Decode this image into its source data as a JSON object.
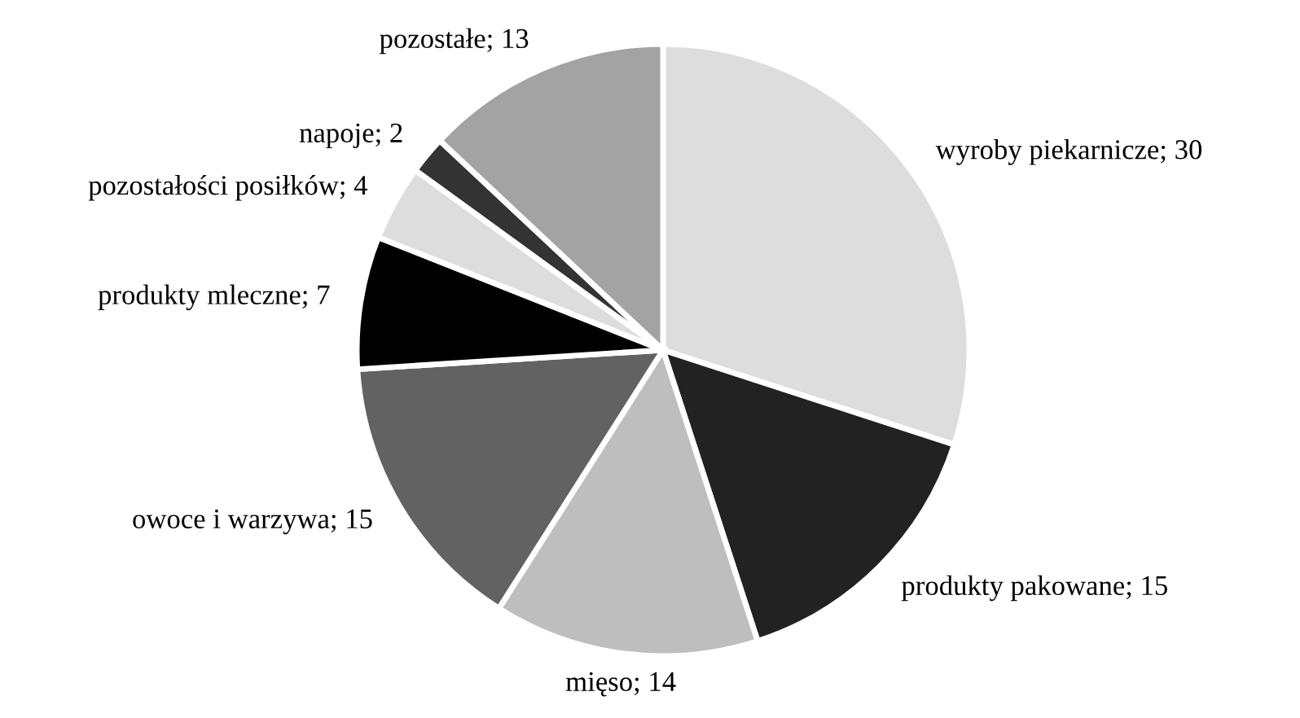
{
  "chart_data": {
    "type": "pie",
    "categories": [
      "wyroby piekarnicze; 30",
      "produkty pakowane; 15",
      "mięso; 14",
      "owoce i warzywa; 15",
      "produkty mleczne; 7",
      "pozostałości posiłków; 4",
      "napoje; 2",
      "pozostałe; 13"
    ],
    "values": [
      30,
      15,
      14,
      15,
      7,
      4,
      2,
      13
    ],
    "colors": [
      "#dddddd",
      "#222222",
      "#bebebe",
      "#626262",
      "#000000",
      "#dddddd",
      "#333333",
      "#a3a3a3"
    ],
    "legend": false
  }
}
